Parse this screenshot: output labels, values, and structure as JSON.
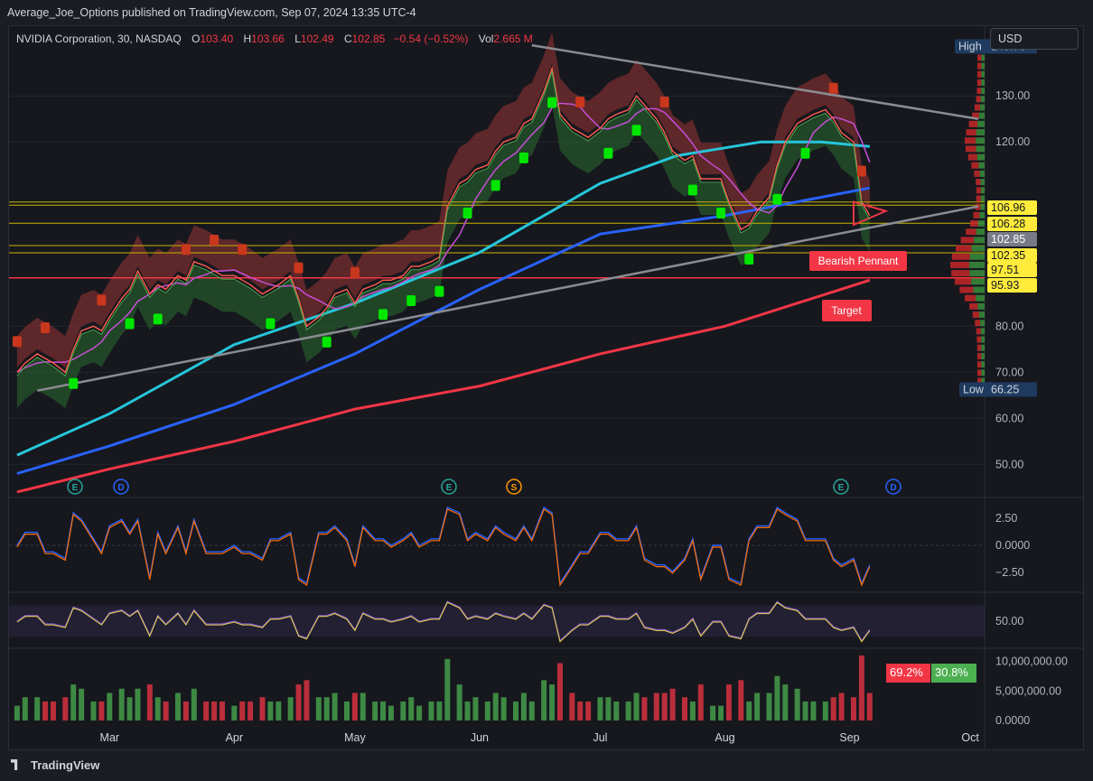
{
  "header": {
    "published": "Average_Joe_Options published on TradingView.com, Sep 07, 2024 13:35 UTC-4"
  },
  "legend": {
    "symbol": "NVIDIA Corporation, 30, NASDAQ",
    "o_label": "O",
    "o": "103.40",
    "h_label": "H",
    "h": "103.66",
    "l_label": "L",
    "l": "102.49",
    "c_label": "C",
    "c": "102.85",
    "change": "−0.54 (−0.52%)",
    "vol_label": "Vol",
    "vol": "2.665 M"
  },
  "currency": "USD",
  "footer": {
    "brand": "TradingView"
  },
  "volume_ratio": {
    "sell": "69.2%",
    "buy": "30.8%"
  },
  "colors": {
    "bull": "#26a69a",
    "bear": "#ef5350",
    "buy_marker": "#00e600",
    "sell_marker": "#c9371c",
    "sma_teal": "#26c6da",
    "sma_blue": "#2962ff",
    "sma_red": "#f23645",
    "magenta": "#c64fd6",
    "trend_gray": "#8a8c93",
    "level_yellow": "#c8b400",
    "target_red": "#f23645"
  },
  "chart_data": {
    "type": "line",
    "title": "NVIDIA Corporation, 30, NASDAQ",
    "x_ticks": [
      "Mar",
      "Apr",
      "May",
      "Jun",
      "Jul",
      "Aug",
      "Sep",
      "Oct"
    ],
    "price_ticks": [
      "130.00",
      "120.00",
      "80.00",
      "70.00",
      "60.00",
      "50.00"
    ],
    "ylim": [
      43,
      142
    ],
    "series": [
      {
        "kind": "price",
        "x": [
          "2024-02-07",
          "2024-02-09",
          "2024-02-12",
          "2024-02-14",
          "2024-02-16",
          "2024-02-19",
          "2024-02-21",
          "2024-02-23",
          "2024-02-26",
          "2024-02-28",
          "2024-03-01",
          "2024-03-04",
          "2024-03-06",
          "2024-03-08",
          "2024-03-11",
          "2024-03-13",
          "2024-03-15",
          "2024-03-18",
          "2024-03-20",
          "2024-03-22",
          "2024-03-25",
          "2024-03-27",
          "2024-03-29",
          "2024-04-01",
          "2024-04-03",
          "2024-04-05",
          "2024-04-08",
          "2024-04-10",
          "2024-04-12",
          "2024-04-15",
          "2024-04-17",
          "2024-04-19",
          "2024-04-22",
          "2024-04-24",
          "2024-04-26",
          "2024-04-29",
          "2024-05-01",
          "2024-05-03",
          "2024-05-06",
          "2024-05-08",
          "2024-05-10",
          "2024-05-13",
          "2024-05-15",
          "2024-05-17",
          "2024-05-20",
          "2024-05-22",
          "2024-05-24",
          "2024-05-27",
          "2024-05-29",
          "2024-05-31",
          "2024-06-03",
          "2024-06-05",
          "2024-06-07",
          "2024-06-10",
          "2024-06-12",
          "2024-06-14",
          "2024-06-17",
          "2024-06-19",
          "2024-06-21",
          "2024-06-24",
          "2024-06-26",
          "2024-06-28",
          "2024-07-01",
          "2024-07-03",
          "2024-07-05",
          "2024-07-08",
          "2024-07-10",
          "2024-07-12",
          "2024-07-15",
          "2024-07-17",
          "2024-07-19",
          "2024-07-22",
          "2024-07-24",
          "2024-07-26",
          "2024-07-29",
          "2024-07-31",
          "2024-08-02",
          "2024-08-05",
          "2024-08-07",
          "2024-08-09",
          "2024-08-12",
          "2024-08-14",
          "2024-08-16",
          "2024-08-19",
          "2024-08-21",
          "2024-08-23",
          "2024-08-26",
          "2024-08-28",
          "2024-08-30",
          "2024-09-02",
          "2024-09-04",
          "2024-09-06"
        ],
        "y": [
          70,
          72,
          74,
          73,
          72,
          70,
          75,
          79,
          80,
          79,
          82,
          86,
          88,
          92,
          87,
          89,
          88,
          91,
          90,
          94,
          93,
          92,
          91,
          91,
          90,
          89,
          87,
          88,
          89,
          91,
          86,
          80,
          82,
          84,
          87,
          88,
          85,
          88,
          89,
          90,
          90,
          91,
          93,
          93,
          94,
          95,
          106,
          111,
          112,
          114,
          115,
          118,
          120,
          121,
          124,
          125,
          131,
          136,
          126,
          123,
          122,
          121,
          123,
          125,
          126,
          127,
          130,
          128,
          125,
          122,
          118,
          116,
          117,
          112,
          112,
          112,
          107,
          101,
          102,
          105,
          108,
          115,
          120,
          124,
          125,
          126,
          127,
          125,
          122,
          120,
          107,
          104
        ]
      },
      {
        "kind": "sma",
        "name": "",
        "color": "teal",
        "x": [
          "2024-02-07",
          "2024-03-01",
          "2024-04-01",
          "2024-05-01",
          "2024-06-01",
          "2024-07-01",
          "2024-07-20",
          "2024-08-10",
          "2024-08-25",
          "2024-09-06"
        ],
        "y": [
          52,
          61,
          76,
          85,
          96,
          111,
          117,
          120,
          120,
          119
        ]
      },
      {
        "kind": "sma",
        "name": "",
        "color": "blue",
        "x": [
          "2024-02-07",
          "2024-03-01",
          "2024-04-01",
          "2024-05-01",
          "2024-06-01",
          "2024-07-01",
          "2024-08-01",
          "2024-09-06"
        ],
        "y": [
          48,
          54,
          63,
          74,
          88,
          100,
          104,
          110
        ]
      },
      {
        "kind": "sma",
        "name": "",
        "color": "red",
        "x": [
          "2024-02-07",
          "2024-03-01",
          "2024-04-01",
          "2024-05-01",
          "2024-06-01",
          "2024-07-01",
          "2024-08-01",
          "2024-09-06"
        ],
        "y": [
          44,
          49,
          55,
          62,
          67,
          74,
          80,
          90
        ]
      }
    ],
    "trendlines": [
      {
        "from": [
          "2024-06-14",
          141
        ],
        "to": [
          "2024-10-03",
          125
        ]
      },
      {
        "from": [
          "2024-02-12",
          66
        ],
        "to": [
          "2024-10-03",
          106
        ]
      }
    ],
    "horizontal_levels": [
      106.96,
      106.28,
      102.35,
      97.51,
      95.93,
      90.5
    ],
    "price_labels": {
      "high_label": "High",
      "high": "140.76",
      "low_label": "Low",
      "low": "66.25",
      "last": "102.85",
      "levels": [
        "106.96",
        "106.28",
        "102.35",
        "97.51",
        "95.93"
      ]
    },
    "annotations": {
      "pattern": "Bearish Pennant",
      "target": "Target"
    },
    "events": {
      "earnings": "E",
      "dividend": "D",
      "split": "S"
    },
    "macd": {
      "ticks": [
        "2.50",
        "0.0000",
        "−2.50"
      ],
      "ylim": [
        -3.5,
        3.5
      ]
    },
    "rsi": {
      "ticks": [
        "50.00"
      ],
      "ylim": [
        20,
        80
      ]
    },
    "volume": {
      "ticks": [
        "10,000,000.00",
        "5,000,000.00",
        "0.0000"
      ],
      "ylim": [
        0,
        11000000
      ]
    }
  }
}
